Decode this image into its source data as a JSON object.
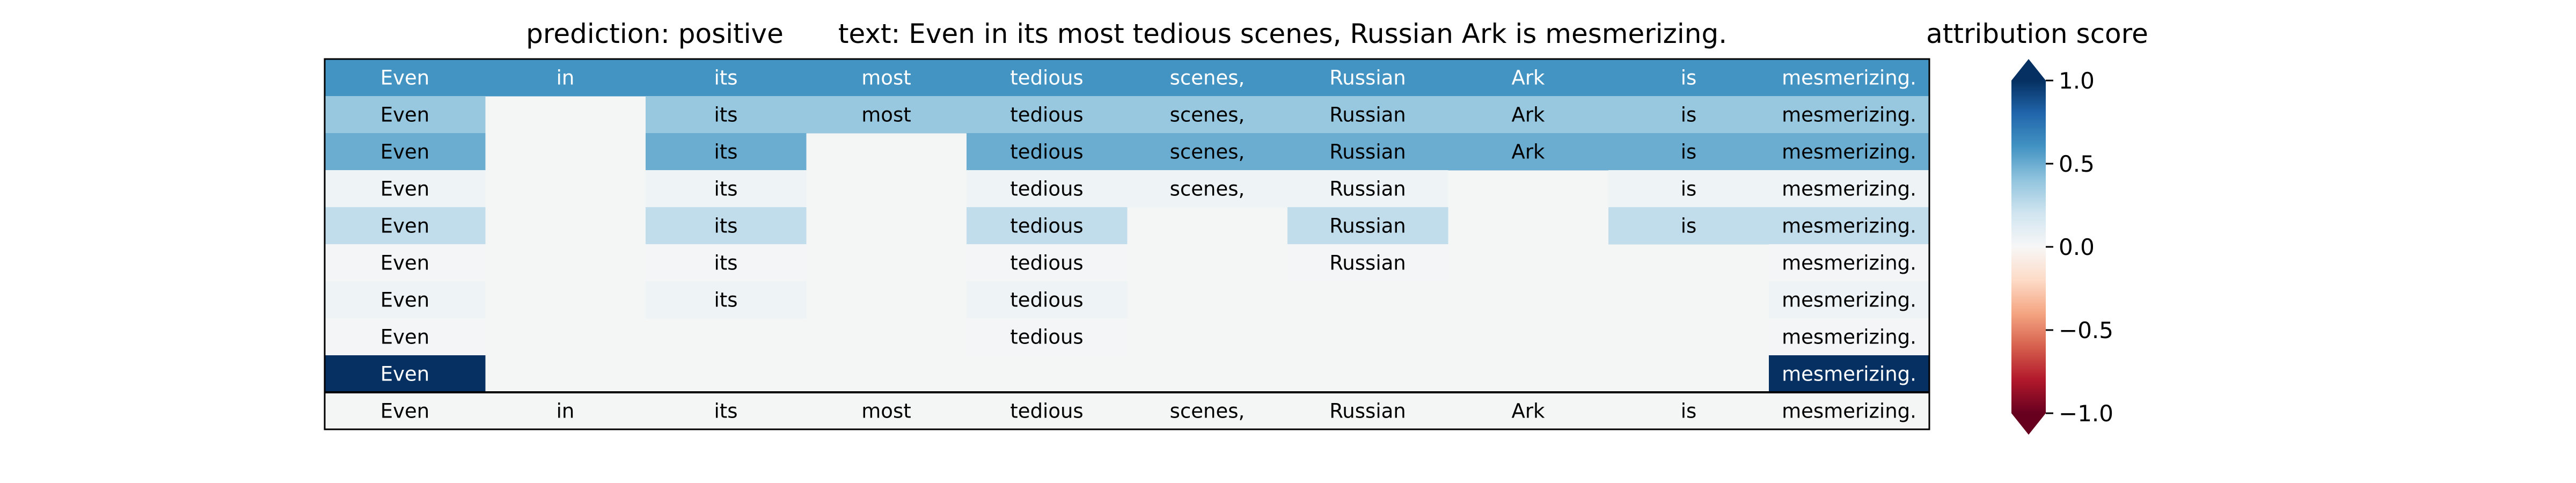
{
  "chart_data": {
    "type": "heatmap",
    "title_left": "prediction:  positive",
    "title_center": "text:  Even in its most tedious scenes, Russian Ark is mesmerizing.",
    "colorbar": {
      "label": "attribution score",
      "range": [
        -1.0,
        1.0
      ],
      "colormap": "RdBu",
      "extend": "both",
      "ticks": [
        1.0,
        0.5,
        0.0,
        -0.5,
        -1.0
      ],
      "tick_labels": [
        "1.0",
        "0.5",
        "0.0",
        "−0.5",
        "−1.0"
      ]
    },
    "tokens": [
      "Even",
      "in",
      "its",
      "most",
      "tedious",
      "scenes,",
      "Russian",
      "Ark",
      "is",
      "mesmerizing."
    ],
    "rows": [
      {
        "present": [
          1,
          1,
          1,
          1,
          1,
          1,
          1,
          1,
          1,
          1
        ],
        "scores": [
          0.6,
          0.6,
          0.6,
          0.6,
          0.6,
          0.6,
          0.6,
          0.6,
          0.6,
          0.6
        ]
      },
      {
        "present": [
          1,
          0,
          1,
          1,
          1,
          1,
          1,
          1,
          1,
          1
        ],
        "scores": [
          0.38,
          0,
          0.38,
          0.38,
          0.38,
          0.38,
          0.38,
          0.38,
          0.38,
          0.38
        ]
      },
      {
        "present": [
          1,
          0,
          1,
          0,
          1,
          1,
          1,
          1,
          1,
          1
        ],
        "scores": [
          0.5,
          0,
          0.5,
          0,
          0.5,
          0.5,
          0.5,
          0.5,
          0.5,
          0.5
        ]
      },
      {
        "present": [
          1,
          0,
          1,
          0,
          1,
          1,
          1,
          0,
          1,
          1
        ],
        "scores": [
          0.05,
          0,
          0.05,
          0,
          0.05,
          0.05,
          0.05,
          0,
          0.05,
          0.05
        ]
      },
      {
        "present": [
          1,
          0,
          1,
          0,
          1,
          0,
          1,
          0,
          1,
          1
        ],
        "scores": [
          0.25,
          0,
          0.25,
          0,
          0.25,
          0,
          0.25,
          0,
          0.25,
          0.25
        ]
      },
      {
        "present": [
          1,
          0,
          1,
          0,
          1,
          0,
          1,
          0,
          0,
          1
        ],
        "scores": [
          0.02,
          0,
          0.02,
          0,
          0.02,
          0,
          0.02,
          0,
          0,
          0.02
        ]
      },
      {
        "present": [
          1,
          0,
          1,
          0,
          1,
          0,
          0,
          0,
          0,
          1
        ],
        "scores": [
          0.05,
          0,
          0.05,
          0,
          0.05,
          0,
          0,
          0,
          0,
          0.05
        ]
      },
      {
        "present": [
          1,
          0,
          0,
          0,
          1,
          0,
          0,
          0,
          0,
          1
        ],
        "scores": [
          0.02,
          0,
          0,
          0,
          0.02,
          0,
          0,
          0,
          0,
          0.02
        ]
      },
      {
        "present": [
          1,
          0,
          0,
          0,
          0,
          0,
          0,
          0,
          0,
          1
        ],
        "scores": [
          1.0,
          0,
          0,
          0,
          0,
          0,
          0,
          0,
          0,
          1.0
        ]
      }
    ],
    "reference_row": {
      "present": [
        1,
        1,
        1,
        1,
        1,
        1,
        1,
        1,
        1,
        1
      ]
    }
  }
}
